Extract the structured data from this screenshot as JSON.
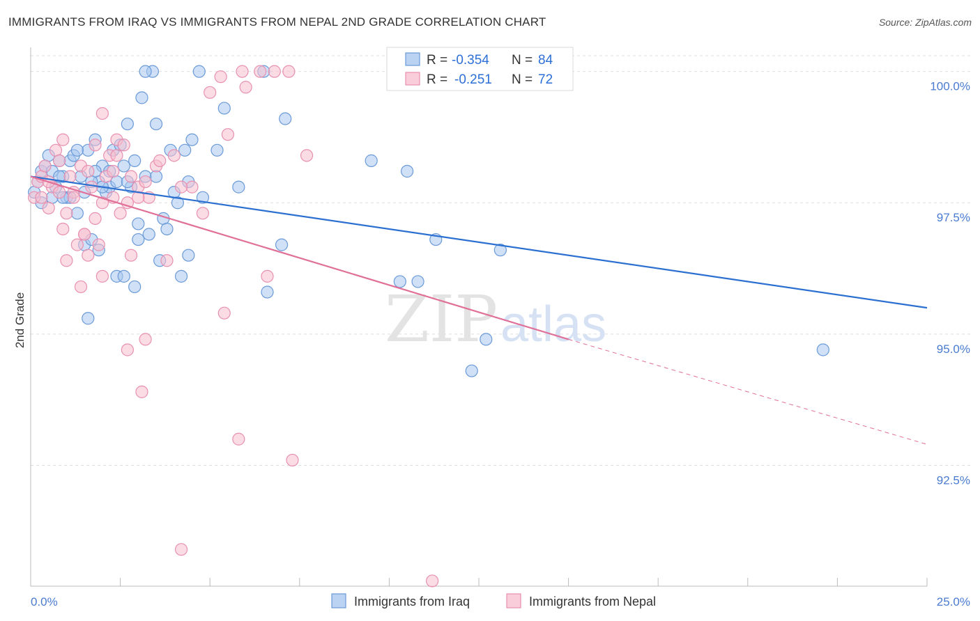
{
  "title": "IMMIGRANTS FROM IRAQ VS IMMIGRANTS FROM NEPAL 2ND GRADE CORRELATION CHART",
  "source": "Source: ZipAtlas.com",
  "watermark": {
    "zip": "ZIP",
    "atlas": "atlas"
  },
  "colors": {
    "iraq_fill": "#aac8f0",
    "iraq_stroke": "#6a9ad8",
    "iraq_line": "#2b6fd0",
    "nepal_fill": "#f7c0d0",
    "nepal_stroke": "#e890b0",
    "nepal_line": "#e07098",
    "grid": "#dddddd",
    "tick_label": "#4a7bd0"
  },
  "legend": {
    "iraq": {
      "r_label": "R =",
      "r_value": "-0.354",
      "n_label": "N =",
      "n_value": "84"
    },
    "nepal": {
      "r_label": "R =",
      "r_value": "-0.251",
      "n_label": "N =",
      "n_value": "72"
    }
  },
  "chart_data": {
    "type": "scatter",
    "title": "IMMIGRANTS FROM IRAQ VS IMMIGRANTS FROM NEPAL 2ND GRADE CORRELATION CHART",
    "xlabel": "",
    "ylabel": "2nd Grade",
    "xlim": [
      0,
      25
    ],
    "ylim": [
      90.2,
      100.3
    ],
    "x_tick_labels": [
      "0.0%",
      "25.0%"
    ],
    "y_ticks": [
      100.0,
      97.5,
      95.0,
      92.5
    ],
    "y_tick_labels": [
      "100.0%",
      "97.5%",
      "95.0%",
      "92.5%"
    ],
    "series": [
      {
        "name": "Immigrants from Iraq",
        "trend": {
          "x": [
            0,
            25
          ],
          "y": [
            98.0,
            95.5
          ]
        },
        "points": [
          [
            0.1,
            97.7
          ],
          [
            0.2,
            97.9
          ],
          [
            0.3,
            98.1
          ],
          [
            0.4,
            98.2
          ],
          [
            0.5,
            98.4
          ],
          [
            0.6,
            97.6
          ],
          [
            0.7,
            97.8
          ],
          [
            0.8,
            98.3
          ],
          [
            0.9,
            98.0
          ],
          [
            1.0,
            97.6
          ],
          [
            1.1,
            98.3
          ],
          [
            1.2,
            98.4
          ],
          [
            1.3,
            97.3
          ],
          [
            1.4,
            98.0
          ],
          [
            1.5,
            96.7
          ],
          [
            1.6,
            98.5
          ],
          [
            1.7,
            96.8
          ],
          [
            1.8,
            98.7
          ],
          [
            1.9,
            97.9
          ],
          [
            2.0,
            98.2
          ],
          [
            2.1,
            97.7
          ],
          [
            2.2,
            97.8
          ],
          [
            2.3,
            98.5
          ],
          [
            2.4,
            97.9
          ],
          [
            2.5,
            98.6
          ],
          [
            2.6,
            98.2
          ],
          [
            2.7,
            99.0
          ],
          [
            2.8,
            97.8
          ],
          [
            2.9,
            98.3
          ],
          [
            3.0,
            97.1
          ],
          [
            3.1,
            99.5
          ],
          [
            3.2,
            98.0
          ],
          [
            3.3,
            96.9
          ],
          [
            3.5,
            98.0
          ],
          [
            3.6,
            96.4
          ],
          [
            3.7,
            97.2
          ],
          [
            3.8,
            97.0
          ],
          [
            3.9,
            98.5
          ],
          [
            4.0,
            97.7
          ],
          [
            4.2,
            96.1
          ],
          [
            4.3,
            98.5
          ],
          [
            4.4,
            97.9
          ],
          [
            4.5,
            98.7
          ],
          [
            4.8,
            97.6
          ],
          [
            5.2,
            98.5
          ],
          [
            5.4,
            99.3
          ],
          [
            5.8,
            97.8
          ],
          [
            6.5,
            100.0
          ],
          [
            6.6,
            95.8
          ],
          [
            7.1,
            99.1
          ],
          [
            7.0,
            96.7
          ],
          [
            9.5,
            98.3
          ],
          [
            10.3,
            96.0
          ],
          [
            10.8,
            96.0
          ],
          [
            10.5,
            98.1
          ],
          [
            11.3,
            96.8
          ],
          [
            12.7,
            94.9
          ],
          [
            12.3,
            94.3
          ],
          [
            13.1,
            96.6
          ],
          [
            22.1,
            94.7
          ],
          [
            1.9,
            96.6
          ],
          [
            2.4,
            96.1
          ],
          [
            1.6,
            95.3
          ],
          [
            2.9,
            95.9
          ],
          [
            3.4,
            100.0
          ],
          [
            3.2,
            100.0
          ],
          [
            4.7,
            100.0
          ],
          [
            2.6,
            96.1
          ],
          [
            3.5,
            99.0
          ],
          [
            0.3,
            97.5
          ],
          [
            1.1,
            97.6
          ],
          [
            1.8,
            98.1
          ],
          [
            2.0,
            97.8
          ],
          [
            2.7,
            97.9
          ],
          [
            4.1,
            97.5
          ],
          [
            1.5,
            97.7
          ],
          [
            0.6,
            98.1
          ],
          [
            0.9,
            97.6
          ],
          [
            2.2,
            98.1
          ],
          [
            3.0,
            96.8
          ],
          [
            1.3,
            98.5
          ],
          [
            0.8,
            98.0
          ],
          [
            4.4,
            96.5
          ],
          [
            1.7,
            97.9
          ]
        ]
      },
      {
        "name": "Immigrants from Nepal",
        "trend": {
          "x": [
            0,
            15
          ],
          "y": [
            98.0,
            94.9
          ]
        },
        "trend_dashed": {
          "x": [
            15,
            25
          ],
          "y": [
            94.9,
            92.9
          ]
        },
        "points": [
          [
            0.1,
            97.6
          ],
          [
            0.2,
            97.9
          ],
          [
            0.3,
            98.0
          ],
          [
            0.4,
            98.2
          ],
          [
            0.5,
            97.4
          ],
          [
            0.6,
            97.8
          ],
          [
            0.7,
            98.5
          ],
          [
            0.8,
            98.3
          ],
          [
            0.9,
            97.0
          ],
          [
            1.0,
            96.4
          ],
          [
            1.1,
            98.0
          ],
          [
            1.2,
            97.7
          ],
          [
            1.3,
            96.7
          ],
          [
            1.4,
            98.2
          ],
          [
            1.5,
            96.9
          ],
          [
            1.6,
            96.5
          ],
          [
            1.7,
            97.8
          ],
          [
            1.8,
            98.6
          ],
          [
            1.9,
            96.7
          ],
          [
            2.0,
            96.1
          ],
          [
            2.1,
            98.0
          ],
          [
            2.2,
            98.4
          ],
          [
            2.3,
            97.6
          ],
          [
            2.4,
            98.7
          ],
          [
            2.5,
            97.3
          ],
          [
            2.6,
            98.6
          ],
          [
            2.7,
            97.5
          ],
          [
            2.8,
            98.0
          ],
          [
            3.0,
            97.8
          ],
          [
            3.1,
            93.9
          ],
          [
            3.2,
            94.9
          ],
          [
            3.3,
            97.6
          ],
          [
            3.5,
            98.2
          ],
          [
            3.6,
            98.3
          ],
          [
            3.8,
            96.4
          ],
          [
            4.0,
            98.4
          ],
          [
            4.2,
            90.9
          ],
          [
            4.5,
            97.8
          ],
          [
            4.8,
            97.3
          ],
          [
            5.0,
            99.6
          ],
          [
            5.3,
            99.9
          ],
          [
            5.5,
            98.8
          ],
          [
            5.4,
            95.4
          ],
          [
            5.9,
            100.0
          ],
          [
            6.0,
            99.7
          ],
          [
            6.4,
            100.0
          ],
          [
            6.6,
            96.1
          ],
          [
            6.8,
            100.0
          ],
          [
            7.2,
            100.0
          ],
          [
            7.3,
            92.6
          ],
          [
            7.7,
            98.4
          ],
          [
            5.8,
            93.0
          ],
          [
            11.2,
            90.3
          ],
          [
            2.0,
            99.2
          ],
          [
            2.7,
            94.7
          ],
          [
            1.4,
            95.9
          ],
          [
            0.9,
            98.7
          ],
          [
            2.3,
            98.1
          ],
          [
            1.0,
            97.3
          ],
          [
            3.0,
            97.6
          ],
          [
            1.6,
            98.1
          ],
          [
            2.4,
            98.4
          ],
          [
            4.2,
            97.8
          ],
          [
            0.5,
            97.9
          ],
          [
            1.2,
            97.6
          ],
          [
            2.0,
            97.5
          ],
          [
            3.2,
            97.9
          ],
          [
            1.8,
            97.2
          ],
          [
            0.8,
            97.7
          ],
          [
            2.8,
            96.5
          ],
          [
            1.5,
            96.9
          ],
          [
            0.3,
            97.6
          ]
        ]
      }
    ]
  },
  "bottom_legend": {
    "iraq": "Immigrants from Iraq",
    "nepal": "Immigrants from Nepal"
  }
}
